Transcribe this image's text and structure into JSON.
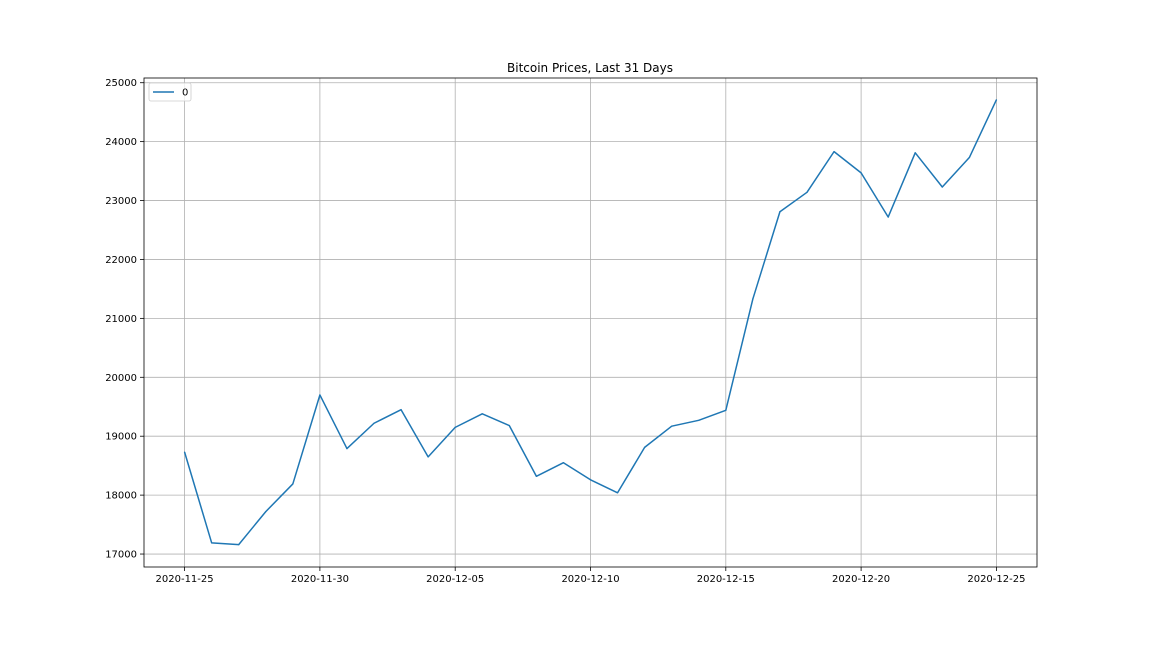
{
  "chart_data": {
    "type": "line",
    "title": "Bitcoin Prices, Last 31 Days",
    "xlabel": "",
    "ylabel": "",
    "x": [
      "2020-11-25",
      "2020-11-26",
      "2020-11-27",
      "2020-11-28",
      "2020-11-29",
      "2020-11-30",
      "2020-12-01",
      "2020-12-02",
      "2020-12-03",
      "2020-12-04",
      "2020-12-05",
      "2020-12-06",
      "2020-12-07",
      "2020-12-08",
      "2020-12-09",
      "2020-12-10",
      "2020-12-11",
      "2020-12-12",
      "2020-12-13",
      "2020-12-14",
      "2020-12-15",
      "2020-12-16",
      "2020-12-17",
      "2020-12-18",
      "2020-12-19",
      "2020-12-20",
      "2020-12-21",
      "2020-12-22",
      "2020-12-23",
      "2020-12-24",
      "2020-12-25"
    ],
    "series": [
      {
        "name": "0",
        "color": "#1f77b4",
        "values": [
          18730,
          17190,
          17160,
          17720,
          18190,
          19700,
          18790,
          19220,
          19450,
          18650,
          19150,
          19380,
          19180,
          18320,
          18550,
          18260,
          18040,
          18810,
          19170,
          19270,
          19440,
          21330,
          22810,
          23140,
          23830,
          23470,
          22720,
          23810,
          23230,
          23730,
          24710
        ]
      }
    ],
    "xticks": [
      "2020-11-25",
      "2020-11-30",
      "2020-12-05",
      "2020-12-10",
      "2020-12-15",
      "2020-12-20",
      "2020-12-25"
    ],
    "yticks": [
      17000,
      18000,
      19000,
      20000,
      21000,
      22000,
      23000,
      24000,
      25000
    ],
    "xlim": [
      "2020-11-23.5",
      "2020-12-26.5"
    ],
    "ylim": [
      16780,
      25080
    ],
    "grid": true,
    "legend_position": "top-left"
  }
}
